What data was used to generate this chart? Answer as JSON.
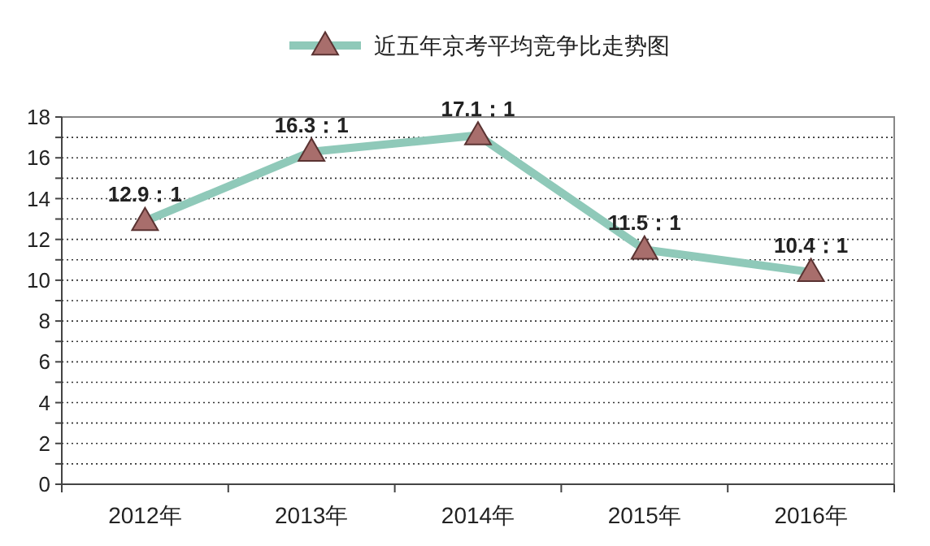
{
  "chart_data": {
    "type": "line",
    "categories": [
      "2012年",
      "2013年",
      "2014年",
      "2015年",
      "2016年"
    ],
    "series": [
      {
        "name": "近五年京考平均竞争比走势图",
        "color": "#8fc9b9",
        "values": [
          12.9,
          16.3,
          17.1,
          11.5,
          10.4
        ],
        "value_labels": [
          "12.9：1",
          "16.3：1",
          "17.1：1",
          "11.5：1",
          "10.4：1"
        ]
      }
    ],
    "ylim": [
      0,
      18
    ],
    "yticks": [
      0,
      {
        "value": 1,
        "label": null
      },
      2,
      {
        "value": 3,
        "label": null
      },
      4,
      {
        "value": 5,
        "label": null
      },
      6,
      {
        "value": 7,
        "label": null
      },
      8,
      {
        "value": 9,
        "label": null
      },
      10,
      {
        "value": 11,
        "label": null
      },
      12,
      {
        "value": 13,
        "label": null
      },
      14,
      {
        "value": 15,
        "label": null
      },
      16,
      {
        "value": 17,
        "label": null
      },
      18
    ],
    "grid": "y",
    "legend": "top",
    "marker": "triangle",
    "line_style": "solid"
  }
}
